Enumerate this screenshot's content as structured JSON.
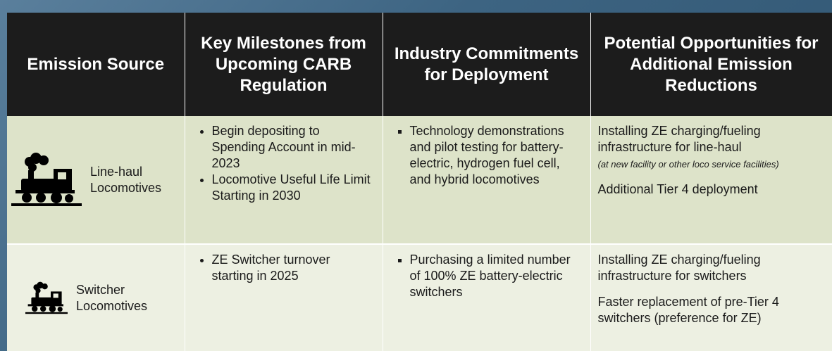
{
  "table": {
    "headers": [
      "Emission Source",
      "Key Milestones from Upcoming CARB Regulation",
      "Industry Commitments for Deployment",
      "Potential Opportunities for Additional Emission Reductions"
    ],
    "rows": [
      {
        "source": "Line-haul Locomotives",
        "milestones": [
          "Begin depositing to Spending Account in mid-2023",
          "Locomotive Useful Life Limit Starting in 2030"
        ],
        "commitments": [
          "Technology demonstrations and pilot testing for battery-electric, hydrogen fuel cell, and hybrid locomotives"
        ],
        "opportunities": [
          {
            "text": "Installing ZE charging/fueling infrastructure for line-haul",
            "note": "(at new facility or other loco service facilities)"
          },
          {
            "text": "Additional Tier 4 deployment"
          }
        ]
      },
      {
        "source": "Switcher Locomotives",
        "milestones": [
          "ZE Switcher turnover starting in 2025"
        ],
        "commitments": [
          "Purchasing a limited number of 100% ZE battery-electric switchers"
        ],
        "opportunities": [
          {
            "text": "Installing ZE charging/fueling infrastructure for switchers"
          },
          {
            "text": "Faster replacement of pre-Tier 4 switchers (preference for ZE)"
          }
        ]
      }
    ]
  }
}
